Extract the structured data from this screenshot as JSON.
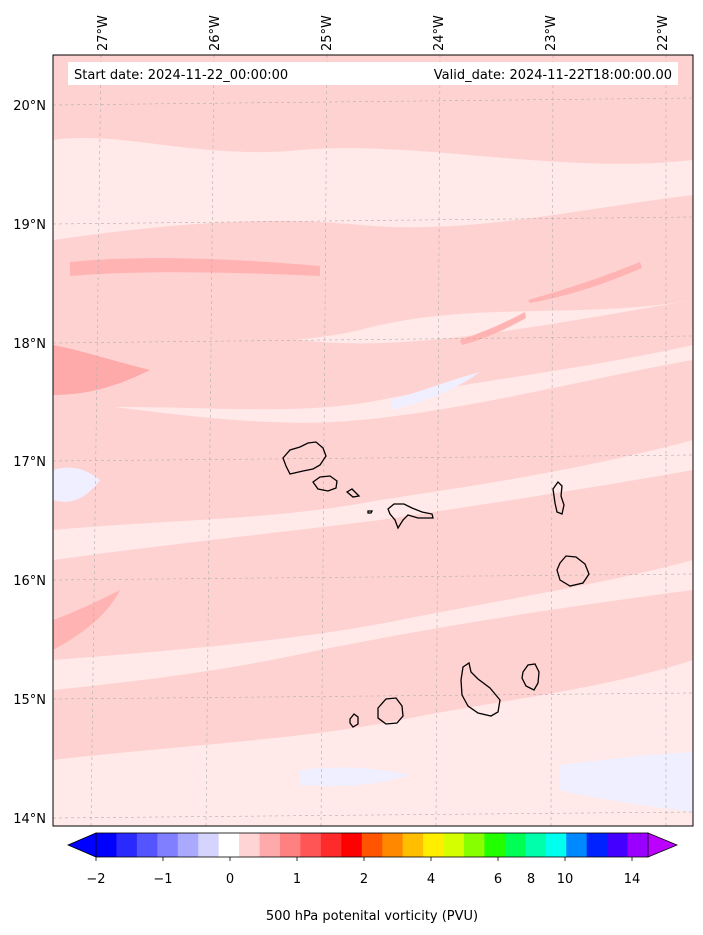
{
  "header": {
    "start_date": "Start date: 2024-11-22_00:00:00",
    "valid_date": "Valid_date: 2024-11-22T18:00:00.00"
  },
  "longitude_labels": [
    "27°W",
    "26°W",
    "25°W",
    "24°W",
    "23°W",
    "22°W"
  ],
  "latitude_labels": [
    "20°N",
    "19°N",
    "18°N",
    "17°N",
    "16°N",
    "15°N",
    "14°N"
  ],
  "colorbar": {
    "label": "500 hPa potenital vorticity (PVU)",
    "tick_labels": [
      "−2",
      "−1",
      "0",
      "1",
      "2",
      "4",
      "6",
      "8",
      "10",
      "14"
    ],
    "colors": [
      "#0000ff",
      "#2a2aff",
      "#5555ff",
      "#7f7fff",
      "#a9a9ff",
      "#d4d4ff",
      "#ffffff",
      "#ffd4d4",
      "#ffaaaa",
      "#ff8080",
      "#ff5555",
      "#ff2b2b",
      "#ff0000",
      "#ff5500",
      "#ff8800",
      "#ffbf00",
      "#ffee00",
      "#d4ff00",
      "#88ff00",
      "#22ff00",
      "#00ff55",
      "#00ffaa",
      "#00ffee",
      "#0088ff",
      "#0022ff",
      "#4400ff",
      "#9900ff"
    ],
    "under_color": "#0000ff",
    "over_color": "#bb00ff"
  },
  "map": {
    "background_color": "#ffe9e9",
    "grid": true,
    "coastline_color": "#000000",
    "islands": [
      "Santo Antão",
      "São Vicente",
      "Santa Luzia",
      "São Nicolau",
      "Sal",
      "Boa Vista",
      "Maio",
      "Santiago",
      "Fogo",
      "Brava"
    ]
  }
}
